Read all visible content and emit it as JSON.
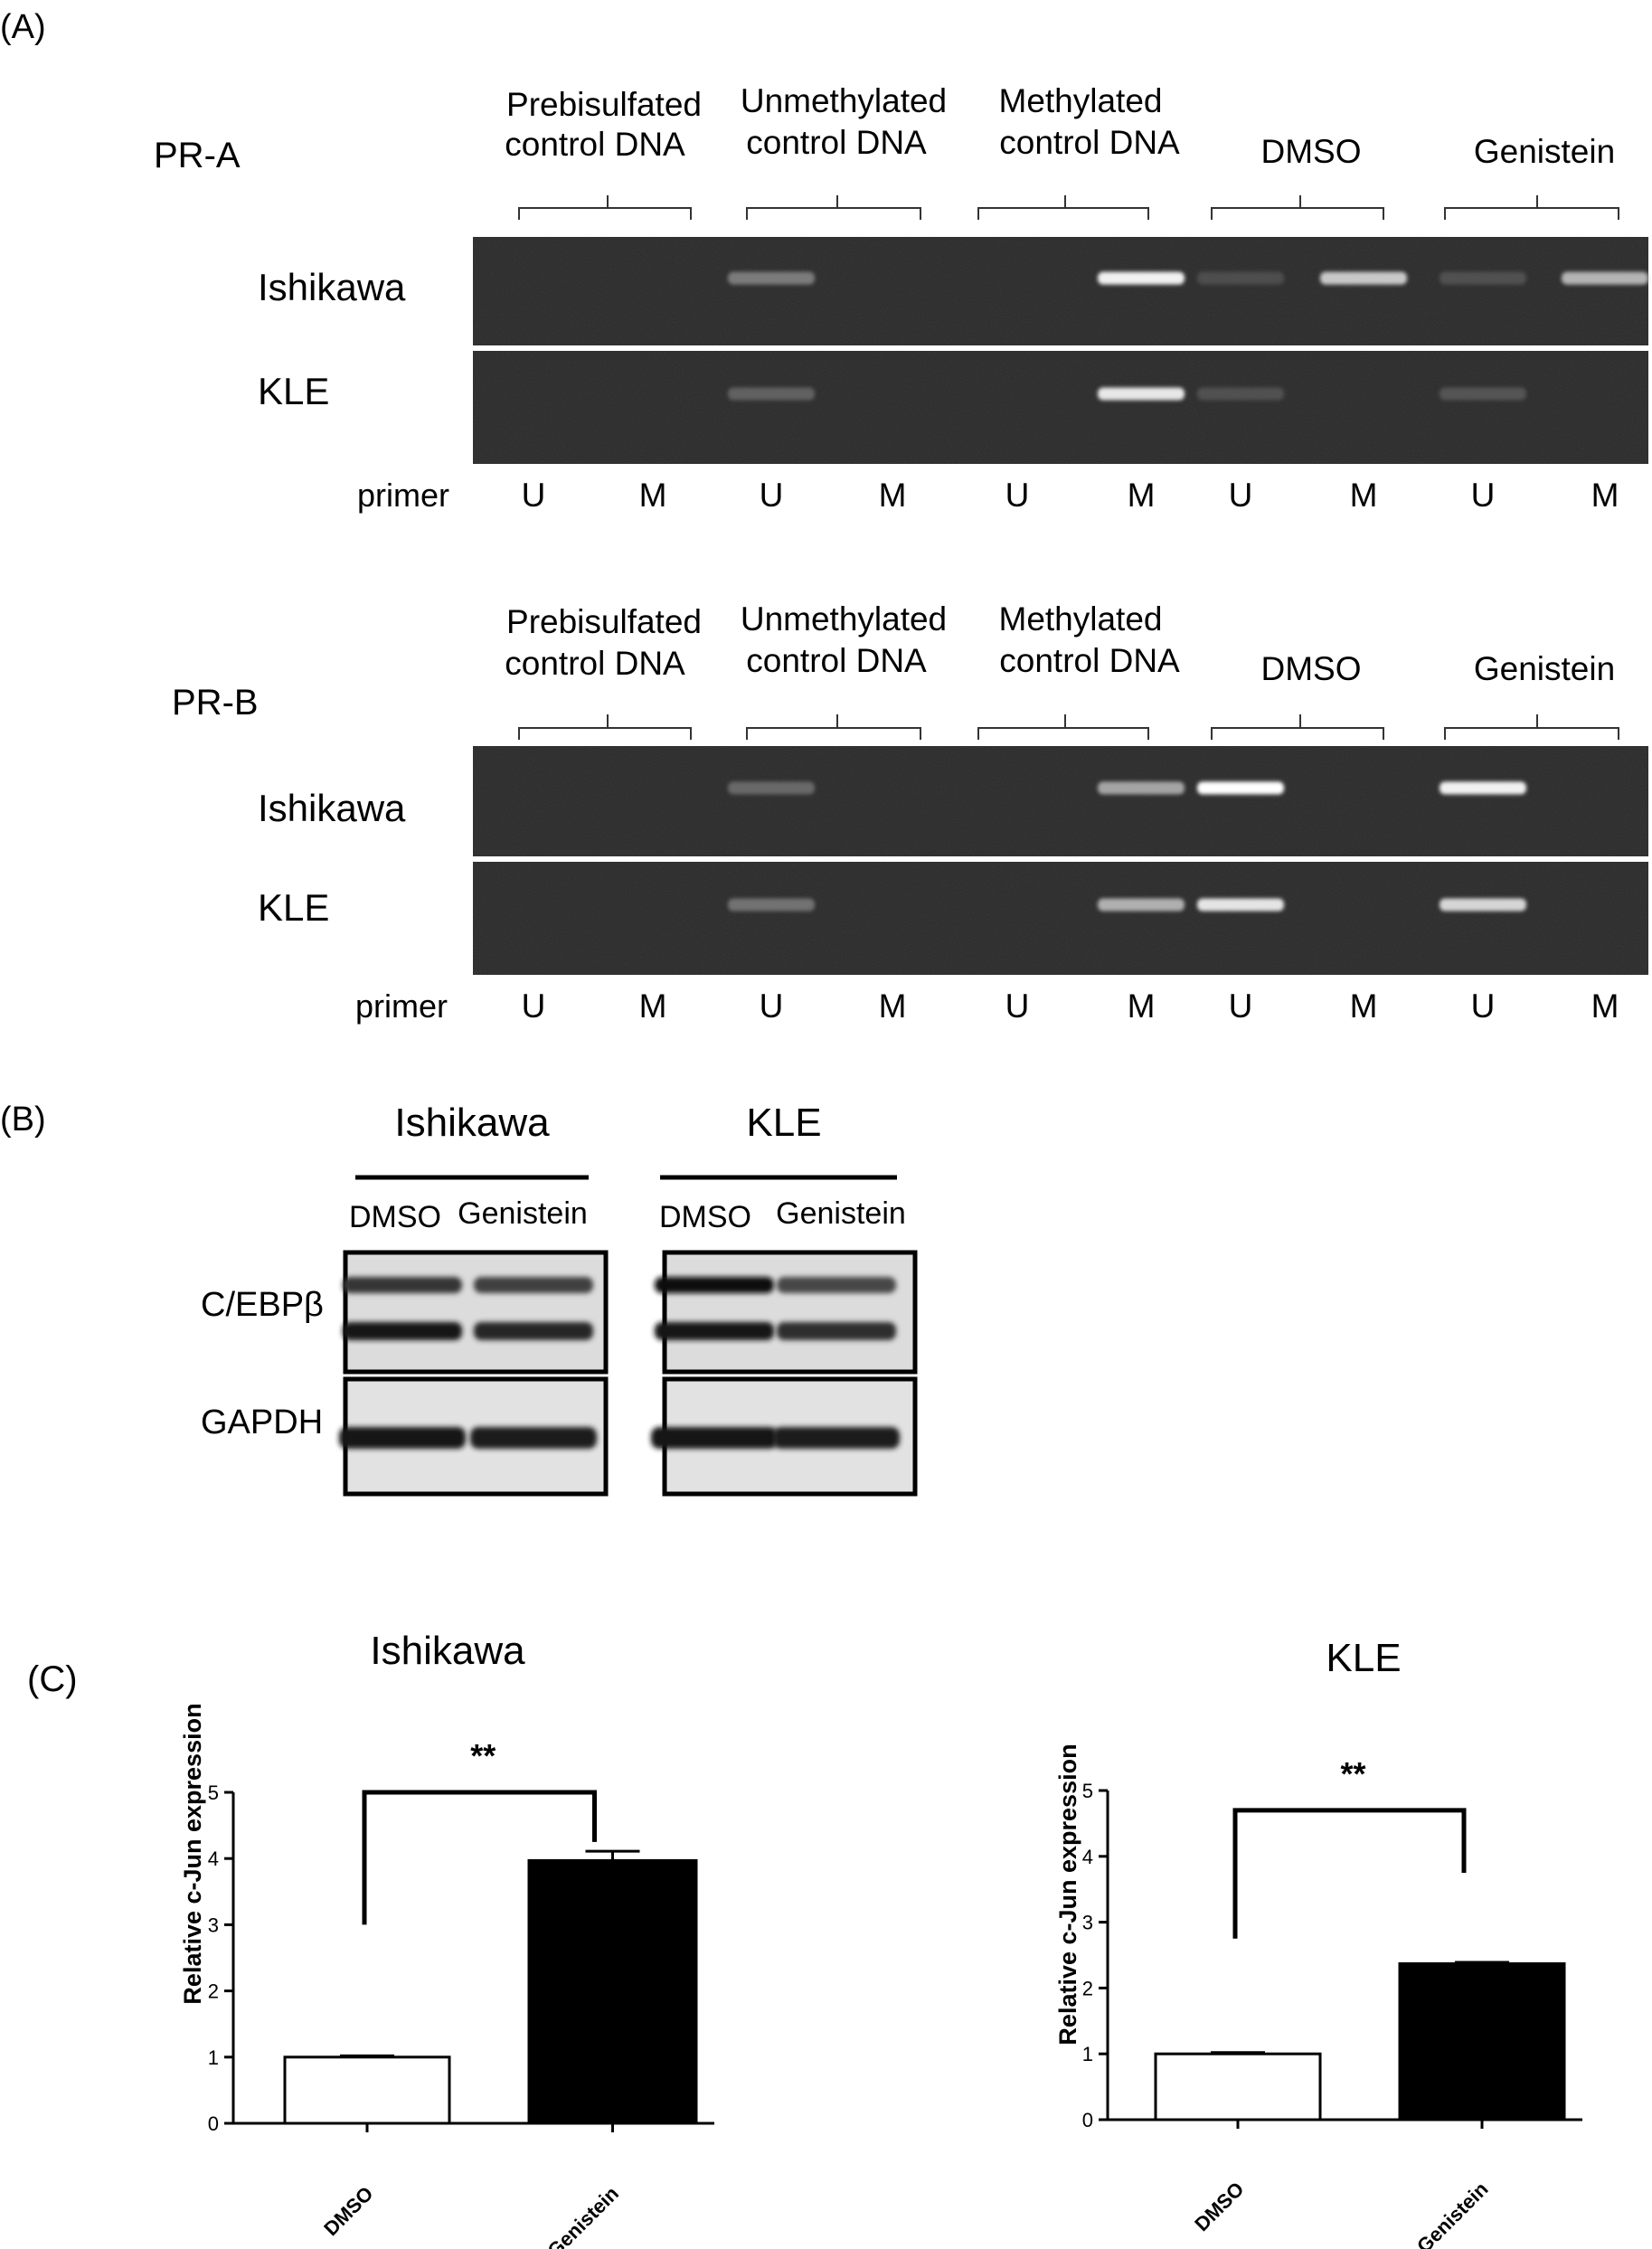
{
  "panelA": {
    "label": "(A)",
    "groups": [
      {
        "line1": "Prebisulfated",
        "line2": "control DNA"
      },
      {
        "line1": "Unmethylated",
        "line2": "control DNA"
      },
      {
        "line1": "Methylated",
        "line2": "control DNA"
      },
      {
        "line1": "DMSO",
        "line2": ""
      },
      {
        "line1": "Genistein",
        "line2": ""
      }
    ],
    "primer_label": "primer",
    "lane_primers": [
      "U",
      "M",
      "U",
      "M",
      "U",
      "M",
      "U",
      "M",
      "U",
      "M"
    ],
    "gels": [
      {
        "title": "PR-A",
        "rows": [
          {
            "name": "Ishikawa",
            "bands": [
              0,
              0,
              0.45,
              0,
              0,
              0.95,
              0.18,
              0.8,
              0.2,
              0.72
            ]
          },
          {
            "name": "KLE",
            "bands": [
              0,
              0,
              0.3,
              0,
              0,
              0.92,
              0.2,
              0,
              0.22,
              0
            ]
          }
        ]
      },
      {
        "title": "PR-B",
        "rows": [
          {
            "name": "Ishikawa",
            "bands": [
              0,
              0,
              0.35,
              0,
              0,
              0.65,
              1.0,
              0,
              0.95,
              0
            ]
          },
          {
            "name": "KLE",
            "bands": [
              0,
              0,
              0.4,
              0,
              0,
              0.7,
              0.9,
              0,
              0.85,
              0
            ]
          }
        ]
      }
    ]
  },
  "panelB": {
    "label": "(B)",
    "blots": [
      {
        "cell": "Ishikawa",
        "lanes": [
          "DMSO",
          "Genistein"
        ],
        "cebpb_upper": [
          0.7,
          0.6
        ],
        "cebpb_lower": [
          0.95,
          0.8
        ],
        "gapdh": [
          0.95,
          0.9
        ]
      },
      {
        "cell": "KLE",
        "lanes": [
          "DMSO",
          "Genistein"
        ],
        "cebpb_upper": [
          1.0,
          0.55
        ],
        "cebpb_lower": [
          0.95,
          0.75
        ],
        "gapdh": [
          0.95,
          0.9
        ]
      }
    ],
    "row_labels": [
      "C/EBPβ",
      "GAPDH"
    ]
  },
  "panelC": {
    "label": "(C)",
    "chart_data": [
      {
        "type": "bar",
        "title": "Ishikawa",
        "categories": [
          "DMSO",
          "Genistein"
        ],
        "values": [
          1.0,
          3.97
        ],
        "errors": [
          0.02,
          0.14
        ],
        "ylabel": "Relative c-Jun expression",
        "ylim": [
          0,
          5
        ],
        "yticks": [
          "0",
          "1",
          "2",
          "3",
          "4",
          "5"
        ],
        "significance": "**",
        "bracket_y": [
          3.0,
          5.0,
          5.0,
          4.25
        ],
        "fills": [
          "#ffffff",
          "#000000"
        ]
      },
      {
        "type": "bar",
        "title": "KLE",
        "categories": [
          "DMSO",
          "Genistein"
        ],
        "values": [
          1.0,
          2.37
        ],
        "errors": [
          0.02,
          0.02
        ],
        "ylabel": "Relative c-Jun expression",
        "ylim": [
          0,
          5
        ],
        "yticks": [
          "0",
          "1",
          "2",
          "3",
          "4",
          "5"
        ],
        "significance": "**",
        "bracket_y": [
          2.75,
          4.7,
          4.7,
          3.75
        ],
        "fills": [
          "#ffffff",
          "#000000"
        ]
      }
    ]
  }
}
